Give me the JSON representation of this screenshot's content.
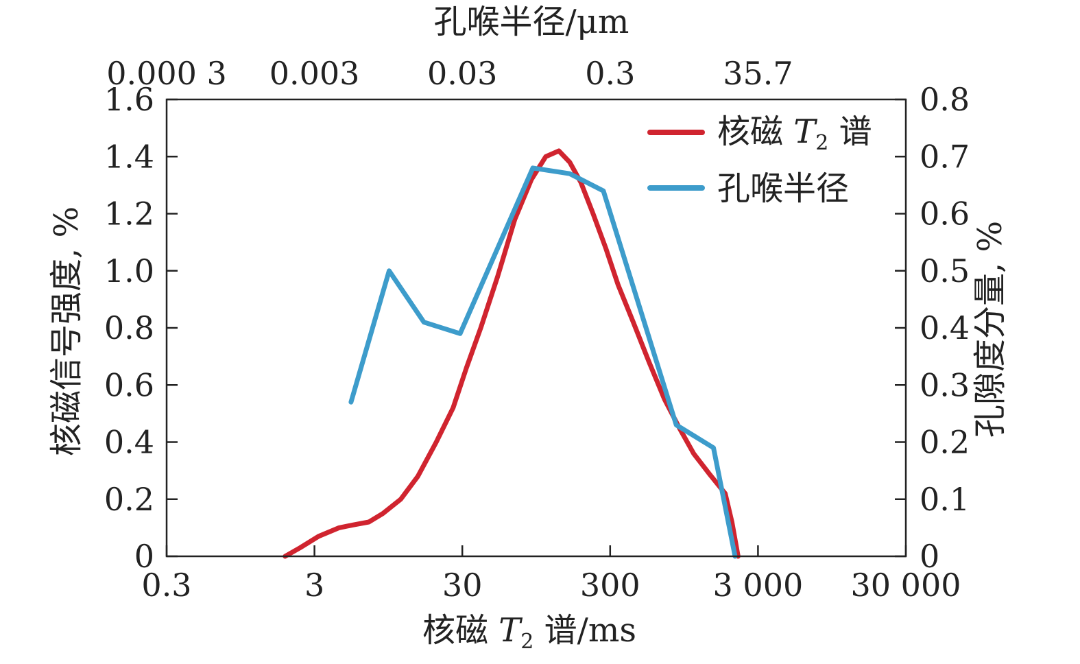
{
  "chart_data": {
    "type": "line",
    "top_axis": {
      "label": "孔喉半径/μm",
      "tick_labels": [
        "0.000 3",
        "0.003",
        "0.03",
        "0.3",
        "35.7"
      ]
    },
    "x_axis": {
      "label_pre": "核磁 ",
      "label_var": "T",
      "label_sub": "2",
      "label_post": " 谱/ms",
      "scale": "log",
      "xlim": [
        0.3,
        30000
      ],
      "ticks": [
        0.3,
        3,
        30,
        300,
        3000,
        30000
      ],
      "tick_labels": [
        "0.3",
        "3",
        "30",
        "300",
        "3 000",
        "30 000"
      ]
    },
    "y_left": {
      "label": "核磁信号强度, %",
      "ylim": [
        0,
        1.6
      ],
      "ticks": [
        0,
        0.2,
        0.4,
        0.6,
        0.8,
        1.0,
        1.2,
        1.4,
        1.6
      ],
      "tick_labels": [
        "0",
        "0.2",
        "0.4",
        "0.6",
        "0.8",
        "1.0",
        "1.2",
        "1.4",
        "1.6"
      ]
    },
    "y_right": {
      "label": "孔隙度分量, %",
      "ylim": [
        0,
        0.8
      ],
      "ticks": [
        0,
        0.1,
        0.2,
        0.3,
        0.4,
        0.5,
        0.6,
        0.7,
        0.8
      ],
      "tick_labels": [
        "0",
        "0.1",
        "0.2",
        "0.3",
        "0.4",
        "0.5",
        "0.6",
        "0.7",
        "0.8"
      ]
    },
    "legend": {
      "placement": "top-right"
    },
    "series": [
      {
        "key": "nmr",
        "name_pre": "核磁 ",
        "name_var": "T",
        "name_sub": "2",
        "name_post": " 谱",
        "color": "#d0242f",
        "axis": "left",
        "x": [
          1.9,
          2.4,
          3.2,
          4.4,
          5.5,
          7.0,
          8.7,
          11.5,
          15,
          20,
          26,
          32,
          40,
          52,
          68,
          88,
          110,
          135,
          160,
          190,
          230,
          280,
          340,
          430,
          550,
          700,
          880,
          1100,
          1400,
          1800,
          2000,
          2200
        ],
        "y": [
          0.0,
          0.03,
          0.07,
          0.1,
          0.11,
          0.12,
          0.15,
          0.2,
          0.28,
          0.4,
          0.52,
          0.66,
          0.8,
          0.98,
          1.18,
          1.32,
          1.4,
          1.42,
          1.38,
          1.31,
          1.2,
          1.08,
          0.95,
          0.82,
          0.68,
          0.55,
          0.45,
          0.36,
          0.29,
          0.22,
          0.12,
          0.0
        ]
      },
      {
        "key": "pore",
        "name": "孔喉半径",
        "color": "#3d9ccb",
        "axis": "right",
        "x": [
          5.3,
          9.6,
          16.5,
          29,
          90,
          160,
          270,
          840,
          1500,
          2100
        ],
        "y": [
          0.27,
          0.5,
          0.41,
          0.39,
          0.68,
          0.67,
          0.64,
          0.23,
          0.19,
          0.0
        ]
      }
    ]
  }
}
